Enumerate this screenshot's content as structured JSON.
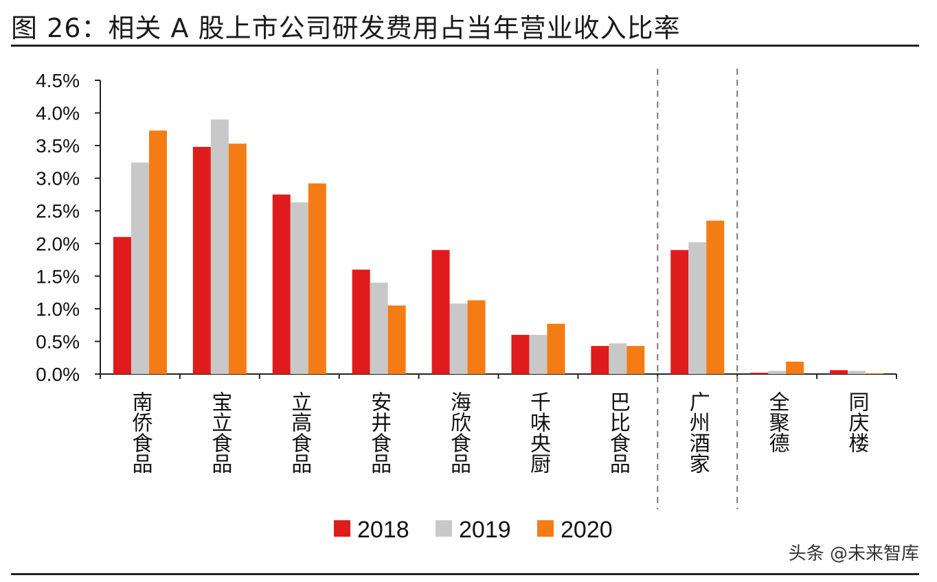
{
  "header": {
    "title": "图 26：相关 A 股上市公司研发费用占当年营业收入比率"
  },
  "watermark": "头条 @未来智库",
  "chart_data": {
    "type": "bar",
    "categories": [
      "南侨食品",
      "宝立食品",
      "立高食品",
      "安井食品",
      "海欣食品",
      "千味央厨",
      "巴比食品",
      "广州酒家",
      "全聚德",
      "同庆楼"
    ],
    "series": [
      {
        "name": "2018",
        "color": "#e01b1b",
        "values": [
          2.1,
          3.48,
          2.75,
          1.6,
          1.9,
          0.6,
          0.43,
          1.9,
          0.02,
          0.06
        ]
      },
      {
        "name": "2019",
        "color": "#c8c8c8",
        "values": [
          3.24,
          3.9,
          2.63,
          1.4,
          1.08,
          0.6,
          0.47,
          2.02,
          0.05,
          0.05
        ]
      },
      {
        "name": "2020",
        "color": "#f57c14",
        "values": [
          3.73,
          3.53,
          2.92,
          1.05,
          1.13,
          0.77,
          0.43,
          2.35,
          0.19,
          0.01
        ]
      }
    ],
    "y_ticks": [
      "0.0%",
      "0.5%",
      "1.0%",
      "1.5%",
      "2.0%",
      "2.5%",
      "3.0%",
      "3.5%",
      "4.0%",
      "4.5%"
    ],
    "ylim": [
      0,
      4.5
    ],
    "y_unit": "%",
    "group_dividers_after": [
      6,
      7
    ],
    "legend_position": "bottom",
    "grid": false
  }
}
